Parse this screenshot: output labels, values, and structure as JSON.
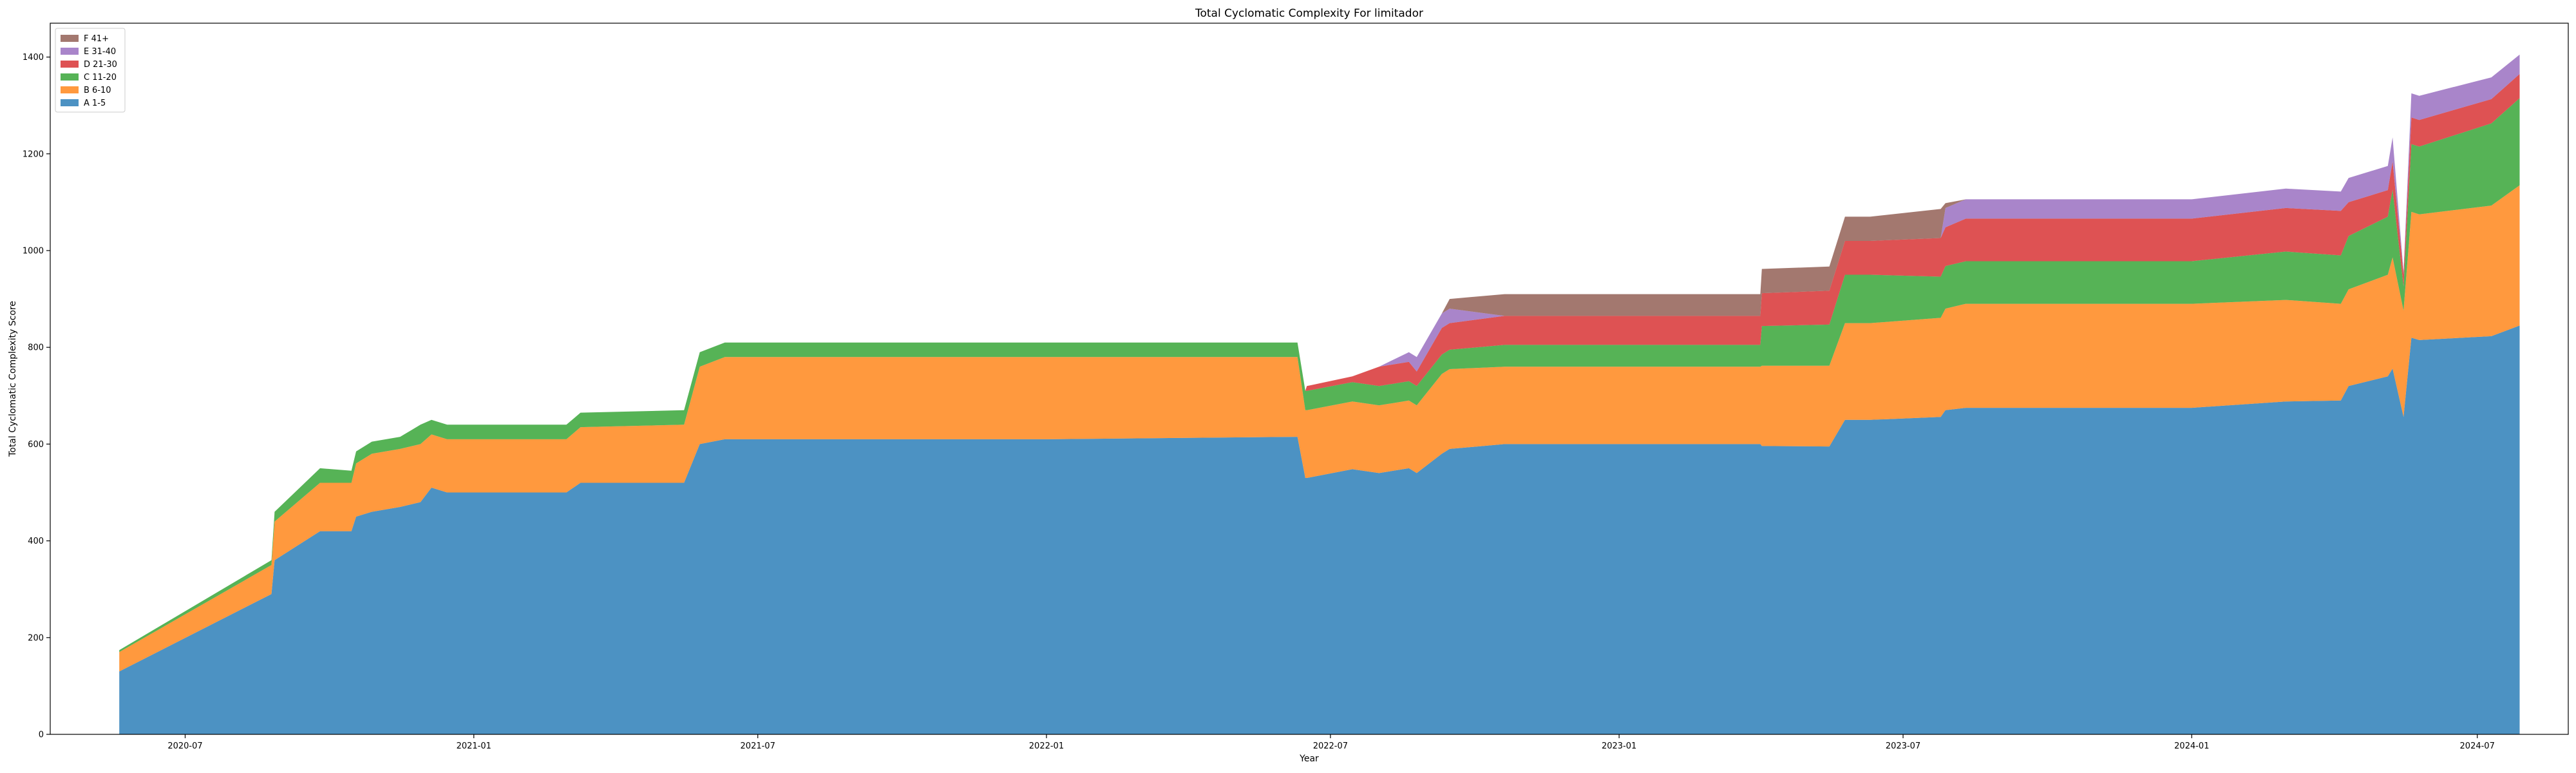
{
  "chart_data": {
    "type": "area",
    "stacked": true,
    "title": "Total Cyclomatic Complexity For limitador",
    "xlabel": "Year",
    "ylabel": "Total Cyclomatic Complexity Score",
    "xlim": [
      "2020-04-06",
      "2024-08-28"
    ],
    "ylim": [
      0,
      1470
    ],
    "y_ticks": [
      0,
      200,
      400,
      600,
      800,
      1000,
      1200,
      1400
    ],
    "x_ticks": [
      {
        "date": "2020-07-01",
        "label": "2020-07"
      },
      {
        "date": "2021-01-01",
        "label": "2021-01"
      },
      {
        "date": "2021-07-01",
        "label": "2021-07"
      },
      {
        "date": "2022-01-01",
        "label": "2022-01"
      },
      {
        "date": "2022-07-01",
        "label": "2022-07"
      },
      {
        "date": "2023-01-01",
        "label": "2023-01"
      },
      {
        "date": "2023-07-01",
        "label": "2023-07"
      },
      {
        "date": "2024-01-01",
        "label": "2024-01"
      },
      {
        "date": "2024-07-01",
        "label": "2024-07"
      }
    ],
    "grid": false,
    "legend_position": "top-left",
    "legend_order": [
      "F 41+",
      "E 31-40",
      "D 21-30",
      "C 11-20",
      "B 6-10",
      "A 1-5"
    ],
    "x": [
      "2020-05-20",
      "2020-08-25",
      "2020-08-27",
      "2020-09-25",
      "2020-10-15",
      "2020-10-18",
      "2020-10-28",
      "2020-11-15",
      "2020-11-28",
      "2020-12-05",
      "2020-12-15",
      "2021-03-01",
      "2021-03-10",
      "2021-05-15",
      "2021-05-25",
      "2021-06-10",
      "2022-01-01",
      "2022-06-10",
      "2022-06-15",
      "2022-06-16",
      "2022-07-15",
      "2022-08-01",
      "2022-08-20",
      "2022-08-25",
      "2022-09-10",
      "2022-09-15",
      "2022-10-20",
      "2023-04-01",
      "2023-04-02",
      "2023-05-15",
      "2023-05-25",
      "2023-06-10",
      "2023-07-25",
      "2023-07-28",
      "2023-08-10",
      "2023-10-01",
      "2024-01-01",
      "2024-03-01",
      "2024-04-05",
      "2024-04-10",
      "2024-05-05",
      "2024-05-08",
      "2024-05-15",
      "2024-05-20",
      "2024-05-25",
      "2024-07-10",
      "2024-07-28"
    ],
    "series": [
      {
        "name": "A 1-5",
        "color": "#1f77b4",
        "values": [
          130,
          290,
          360,
          420,
          420,
          450,
          460,
          470,
          480,
          510,
          500,
          500,
          520,
          520,
          600,
          610,
          610,
          615,
          530,
          530,
          548,
          540,
          550,
          540,
          580,
          590,
          600,
          600,
          596,
          595,
          650,
          650,
          656,
          670,
          675,
          675,
          675,
          688,
          690,
          720,
          740,
          756,
          656,
          820,
          815,
          823,
          845
        ]
      },
      {
        "name": "B 6-10",
        "color": "#ff7f0e",
        "values": [
          40,
          60,
          80,
          100,
          100,
          110,
          120,
          120,
          120,
          110,
          110,
          110,
          115,
          120,
          160,
          170,
          170,
          165,
          140,
          140,
          140,
          140,
          140,
          140,
          165,
          165,
          160,
          160,
          166,
          167,
          200,
          200,
          205,
          210,
          215,
          215,
          215,
          210,
          200,
          200,
          210,
          230,
          220,
          260,
          260,
          270,
          290
        ]
      },
      {
        "name": "C 11-20",
        "color": "#2ca02c",
        "values": [
          4,
          10,
          20,
          30,
          25,
          25,
          25,
          25,
          40,
          30,
          30,
          30,
          30,
          30,
          30,
          30,
          30,
          30,
          40,
          40,
          40,
          40,
          40,
          40,
          40,
          40,
          45,
          45,
          82,
          85,
          100,
          100,
          85,
          88,
          88,
          88,
          88,
          100,
          100,
          110,
          120,
          140,
          50,
          140,
          140,
          170,
          180
        ]
      },
      {
        "name": "D 21-30",
        "color": "#d62728",
        "values": [
          0,
          0,
          0,
          0,
          0,
          0,
          0,
          0,
          0,
          0,
          0,
          0,
          0,
          0,
          0,
          0,
          0,
          0,
          0,
          10,
          12,
          40,
          40,
          30,
          55,
          55,
          60,
          60,
          68,
          70,
          70,
          70,
          80,
          80,
          88,
          88,
          88,
          90,
          92,
          70,
          55,
          58,
          25,
          55,
          55,
          50,
          50
        ]
      },
      {
        "name": "E 31-40",
        "color": "#9467bd",
        "values": [
          0,
          0,
          0,
          0,
          0,
          0,
          0,
          0,
          0,
          0,
          0,
          0,
          0,
          0,
          0,
          0,
          0,
          0,
          0,
          0,
          0,
          0,
          20,
          30,
          30,
          30,
          0,
          0,
          0,
          0,
          0,
          0,
          0,
          40,
          40,
          40,
          40,
          40,
          40,
          50,
          50,
          50,
          5,
          50,
          50,
          45,
          40
        ]
      },
      {
        "name": "F 41+",
        "color": "#8c564b",
        "values": [
          0,
          0,
          0,
          0,
          0,
          0,
          0,
          0,
          0,
          0,
          0,
          0,
          0,
          0,
          0,
          0,
          0,
          0,
          0,
          0,
          0,
          0,
          0,
          0,
          0,
          20,
          45,
          45,
          50,
          50,
          50,
          50,
          60,
          10,
          0,
          0,
          0,
          0,
          0,
          0,
          0,
          0,
          0,
          0,
          0,
          0,
          0
        ]
      }
    ]
  }
}
